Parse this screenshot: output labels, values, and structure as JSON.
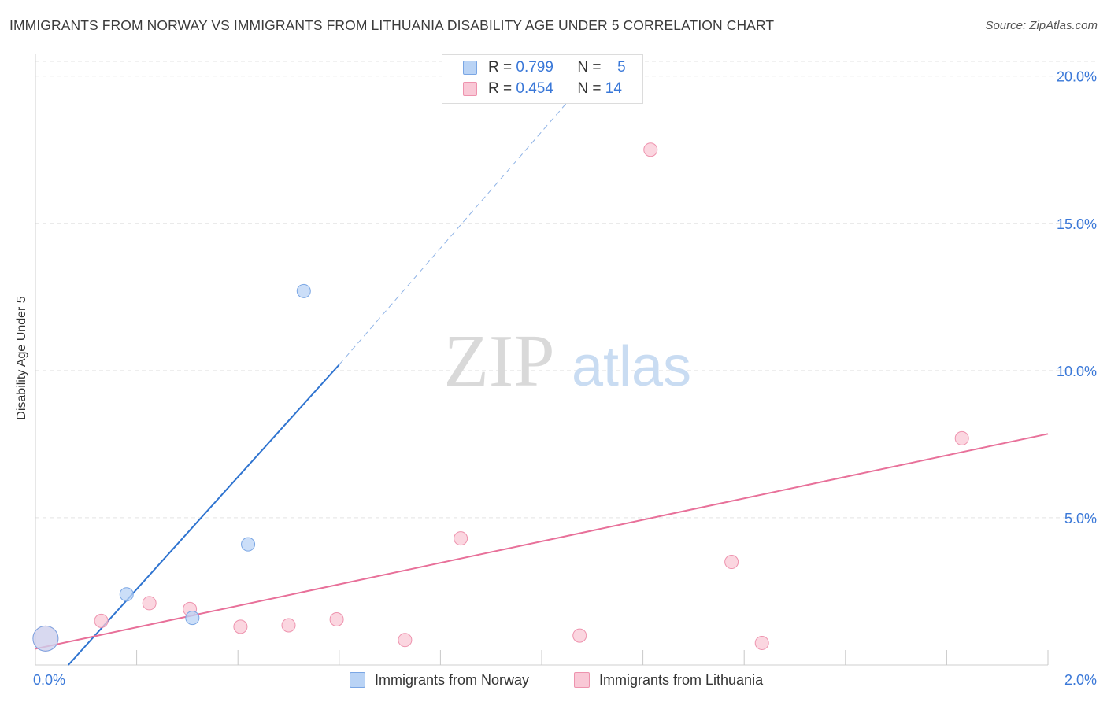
{
  "title": "IMMIGRANTS FROM NORWAY VS IMMIGRANTS FROM LITHUANIA DISABILITY AGE UNDER 5 CORRELATION CHART",
  "source": "Source: ZipAtlas.com",
  "watermark": {
    "zip": "ZIP",
    "atlas": "atlas"
  },
  "colors": {
    "norway_fill": "#b9d3f5",
    "norway_stroke": "#7aa6e4",
    "norway_line": "#2f74d0",
    "lithuania_fill": "#f9c8d6",
    "lithuania_stroke": "#ee93ae",
    "lithuania_line": "#e8719a",
    "tick_label": "#3a78d8",
    "grid": "#e3e3e3"
  },
  "legend": {
    "rows": [
      {
        "r_label": "R = ",
        "r_value": "0.799",
        "n_label": "N = ",
        "n_value": "5"
      },
      {
        "r_label": "R = ",
        "r_value": "0.454",
        "n_label": "N = ",
        "n_value": "14"
      }
    ]
  },
  "bottom_legend": {
    "norway": "Immigrants from Norway",
    "lithuania": "Immigrants from Lithuania"
  },
  "chart_data": {
    "type": "scatter",
    "title": "IMMIGRANTS FROM NORWAY VS IMMIGRANTS FROM LITHUANIA DISABILITY AGE UNDER 5 CORRELATION CHART",
    "xlabel": "",
    "ylabel": "Disability Age Under 5",
    "xlim": [
      0,
      2.0
    ],
    "ylim": [
      0,
      20.5
    ],
    "x_tick_labels": [
      "0.0%",
      "2.0%"
    ],
    "x_tick_label_values": [
      0,
      2.0
    ],
    "x_ticks": [
      0,
      0.2,
      0.4,
      0.6,
      0.8,
      1.0,
      1.2,
      1.4,
      1.6,
      1.8,
      2.0
    ],
    "y_ticks": [
      5,
      10,
      15,
      20
    ],
    "y_tick_labels": [
      "5.0%",
      "10.0%",
      "15.0%",
      "20.0%"
    ],
    "grid": true,
    "legend_placement": "top-center",
    "series": [
      {
        "name": "Immigrants from Norway",
        "R": 0.799,
        "N": 5,
        "points": [
          {
            "x": 0.02,
            "y": 0.9,
            "large": true
          },
          {
            "x": 0.18,
            "y": 2.4
          },
          {
            "x": 0.31,
            "y": 1.6
          },
          {
            "x": 0.42,
            "y": 4.1
          },
          {
            "x": 0.53,
            "y": 12.7
          }
        ],
        "trend": {
          "x_start": 0.065,
          "y_start": 0.0,
          "x_end": 0.6,
          "y_end": 10.2,
          "dashed_to_x": 1.06,
          "dashed_to_y": 19.3
        }
      },
      {
        "name": "Immigrants from Lithuania",
        "R": 0.454,
        "N": 14,
        "points": [
          {
            "x": 0.02,
            "y": 0.9,
            "large": true
          },
          {
            "x": 0.13,
            "y": 1.5
          },
          {
            "x": 0.225,
            "y": 2.1
          },
          {
            "x": 0.305,
            "y": 1.9
          },
          {
            "x": 0.405,
            "y": 1.3
          },
          {
            "x": 0.5,
            "y": 1.35
          },
          {
            "x": 0.595,
            "y": 1.55
          },
          {
            "x": 0.73,
            "y": 0.85
          },
          {
            "x": 0.84,
            "y": 4.3
          },
          {
            "x": 1.075,
            "y": 1.0
          },
          {
            "x": 1.215,
            "y": 17.5
          },
          {
            "x": 1.375,
            "y": 3.5
          },
          {
            "x": 1.435,
            "y": 0.75
          },
          {
            "x": 1.83,
            "y": 7.7
          }
        ],
        "trend": {
          "x_start": 0.0,
          "y_start": 0.55,
          "x_end": 2.0,
          "y_end": 7.85
        }
      }
    ]
  }
}
